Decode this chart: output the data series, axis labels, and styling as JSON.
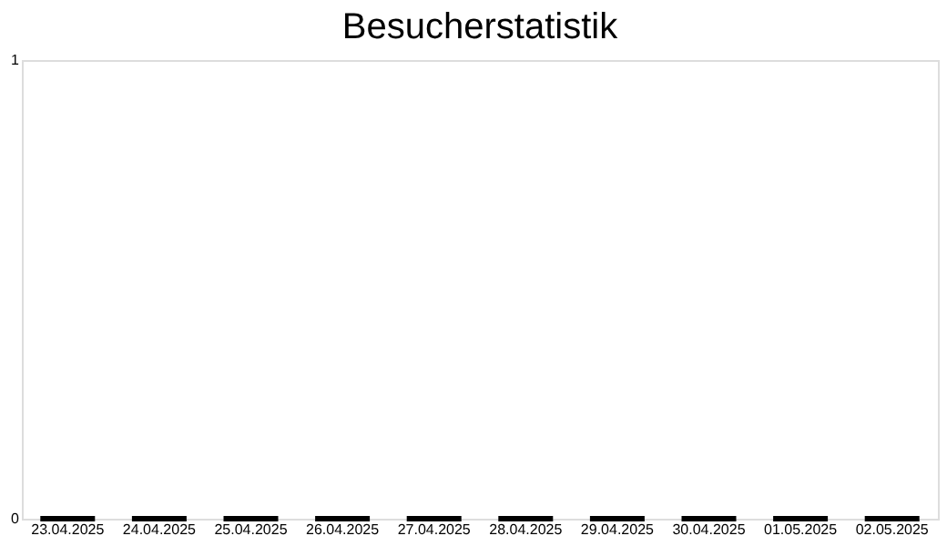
{
  "chart_data": {
    "type": "bar",
    "title": "Besucherstatistik",
    "categories": [
      "23.04.2025",
      "24.04.2025",
      "25.04.2025",
      "26.04.2025",
      "27.04.2025",
      "28.04.2025",
      "29.04.2025",
      "30.04.2025",
      "01.05.2025",
      "02.05.2025"
    ],
    "values": [
      0,
      0,
      0,
      0,
      0,
      0,
      0,
      0,
      0,
      0
    ],
    "color": "#000000",
    "ylim": [
      0,
      1
    ],
    "yticks": [
      0,
      1
    ],
    "grid": false
  }
}
